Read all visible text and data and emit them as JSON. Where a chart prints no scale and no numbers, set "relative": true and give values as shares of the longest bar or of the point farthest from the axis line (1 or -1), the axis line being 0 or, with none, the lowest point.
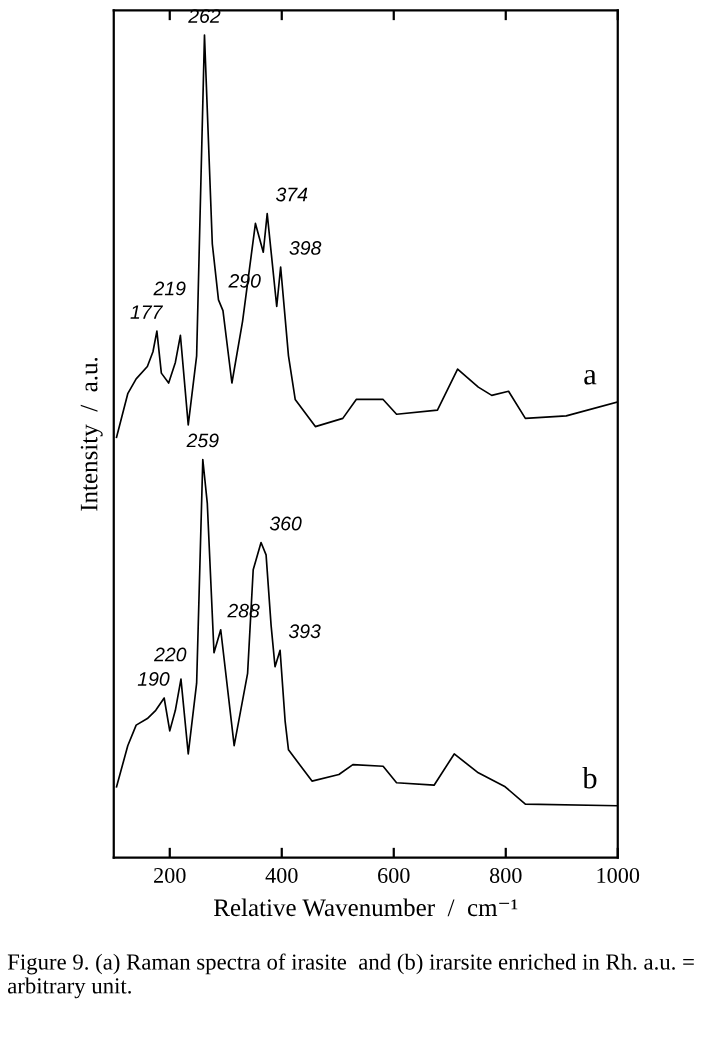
{
  "chart_data": {
    "type": "line",
    "relative": true,
    "xlabel": "Relative Wavenumber  /  cm⁻¹",
    "ylabel": "Intensity  /  a.u.",
    "xlim": [
      100,
      1000
    ],
    "xticks": [
      200,
      400,
      600,
      800,
      1000
    ],
    "grid": false,
    "legend": false,
    "marker": "none",
    "line_style": "solid",
    "series": [
      {
        "name": "a",
        "color": "#000000",
        "x": [
          105,
          125,
          140,
          160,
          170,
          177,
          185,
          198,
          210,
          219,
          233,
          248,
          262,
          276,
          287,
          295,
          311,
          330,
          353,
          367,
          374,
          391,
          398,
          412,
          424,
          460,
          509,
          533,
          581,
          605,
          678,
          714,
          751,
          775,
          805,
          835,
          908,
          1000
        ],
        "values": [
          0.511,
          0.564,
          0.582,
          0.597,
          0.615,
          0.64,
          0.589,
          0.577,
          0.602,
          0.635,
          0.526,
          0.61,
          1.0,
          0.746,
          0.678,
          0.665,
          0.577,
          0.652,
          0.771,
          0.736,
          0.783,
          0.67,
          0.718,
          0.61,
          0.557,
          0.524,
          0.534,
          0.557,
          0.557,
          0.539,
          0.544,
          0.594,
          0.572,
          0.562,
          0.567,
          0.534,
          0.537,
          0.554
        ]
      },
      {
        "name": "b",
        "color": "#000000",
        "x": [
          105,
          125,
          140,
          160,
          175,
          190,
          200,
          210,
          220,
          233,
          248,
          259,
          267,
          279,
          291,
          315,
          339,
          349,
          363,
          372,
          381,
          388,
          397,
          406,
          412,
          454,
          502,
          527,
          581,
          605,
          672,
          708,
          751,
          799,
          835,
          1000
        ],
        "values": [
          0.086,
          0.136,
          0.161,
          0.169,
          0.179,
          0.194,
          0.154,
          0.179,
          0.217,
          0.126,
          0.212,
          0.484,
          0.431,
          0.249,
          0.277,
          0.136,
          0.224,
          0.35,
          0.383,
          0.368,
          0.282,
          0.232,
          0.252,
          0.166,
          0.131,
          0.093,
          0.101,
          0.113,
          0.111,
          0.091,
          0.088,
          0.126,
          0.103,
          0.086,
          0.065,
          0.063
        ]
      }
    ],
    "annotations": [
      {
        "text": "177",
        "x": 177,
        "y": 0.64
      },
      {
        "text": "219",
        "x": 219,
        "y": 0.635
      },
      {
        "text": "262",
        "x": 262,
        "y": 1.0
      },
      {
        "text": "290",
        "x": 290,
        "y": 0.678
      },
      {
        "text": "374",
        "x": 374,
        "y": 0.783
      },
      {
        "text": "398",
        "x": 398,
        "y": 0.718
      },
      {
        "text": "190",
        "x": 190,
        "y": 0.194
      },
      {
        "text": "220",
        "x": 220,
        "y": 0.217
      },
      {
        "text": "259",
        "x": 259,
        "y": 0.484
      },
      {
        "text": "288",
        "x": 288,
        "y": 0.277
      },
      {
        "text": "360",
        "x": 363,
        "y": 0.383
      },
      {
        "text": "393",
        "x": 397,
        "y": 0.252
      },
      "Figure 9. (a) Raman spectra of irasite  and (b) irarsite enriched in Rh. a.u. = arbitrary unit."
    ]
  }
}
